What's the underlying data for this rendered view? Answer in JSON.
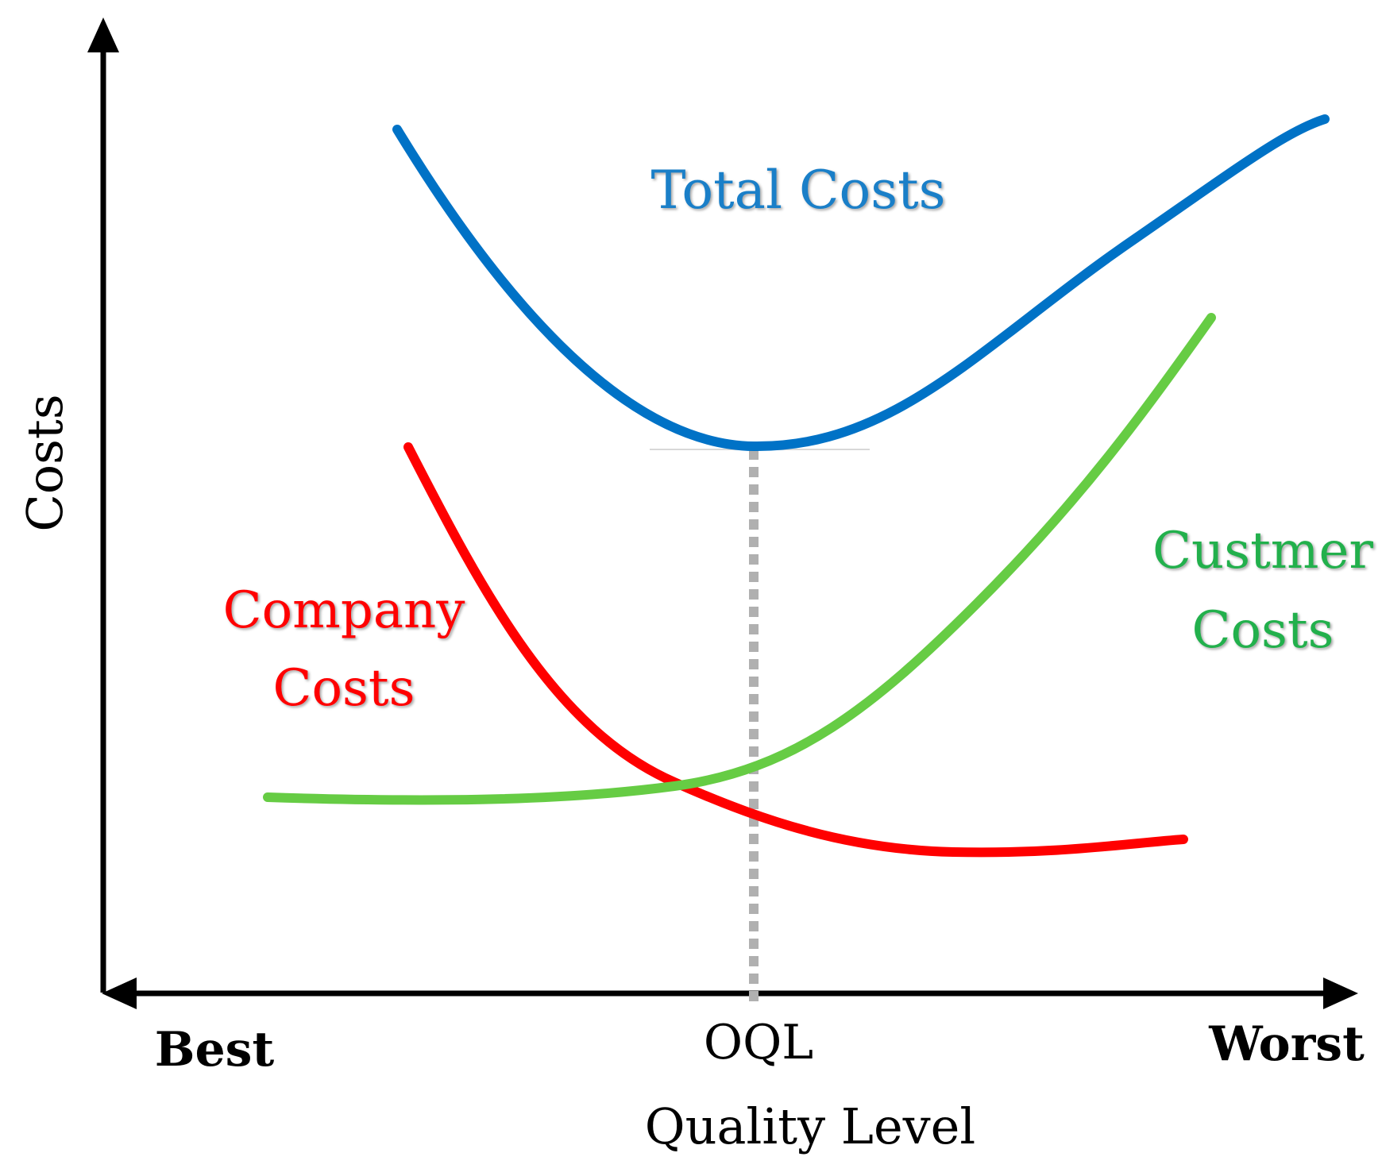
{
  "axes": {
    "y_label": "Costs",
    "x_label": "Quality Level",
    "x_left_label": "Best",
    "x_right_label": "Worst",
    "x_marker_label": "OQL"
  },
  "curves": [
    {
      "label_lines": [
        "Total Costs"
      ],
      "color": "#0072c6"
    },
    {
      "label_lines": [
        "Company",
        "Costs"
      ],
      "color": "#ff0000"
    },
    {
      "label_lines": [
        "Custmer",
        "Costs"
      ],
      "color": "#66cc44"
    }
  ],
  "colors": {
    "axis": "#000000",
    "total_label": "#1a7fc8",
    "company_label": "#ff0000",
    "customer_label": "#22b04c",
    "oql_line": "#b0b0b0"
  }
}
